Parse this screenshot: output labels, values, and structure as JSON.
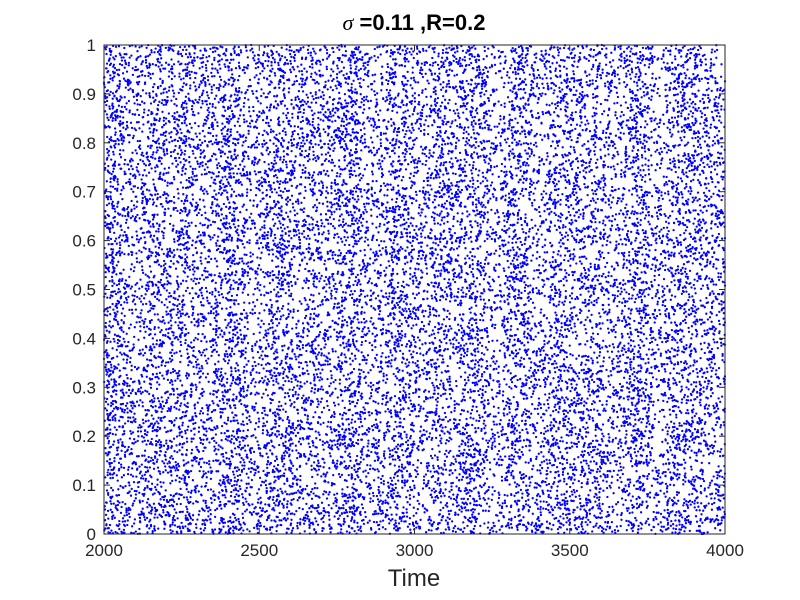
{
  "chart_data": {
    "type": "scatter",
    "title": {
      "symbol": "σ",
      "text": " =0.11 ,R=0.2"
    },
    "xlabel": "Time",
    "ylabel": "",
    "xlim": [
      2000,
      4000
    ],
    "ylim": [
      0,
      1
    ],
    "xticks": [
      "2000",
      "2500",
      "3000",
      "3500",
      "4000"
    ],
    "yticks": [
      "0",
      "0.1",
      "0.2",
      "0.3",
      "0.4",
      "0.5",
      "0.6",
      "0.7",
      "0.8",
      "0.9",
      "1"
    ],
    "grid": false,
    "legend": "none",
    "marker_color": "#0000ff",
    "distribution": "points densely and roughly uniformly fill the range x 2000–4000, y 0–1, with faint vertical banding"
  }
}
